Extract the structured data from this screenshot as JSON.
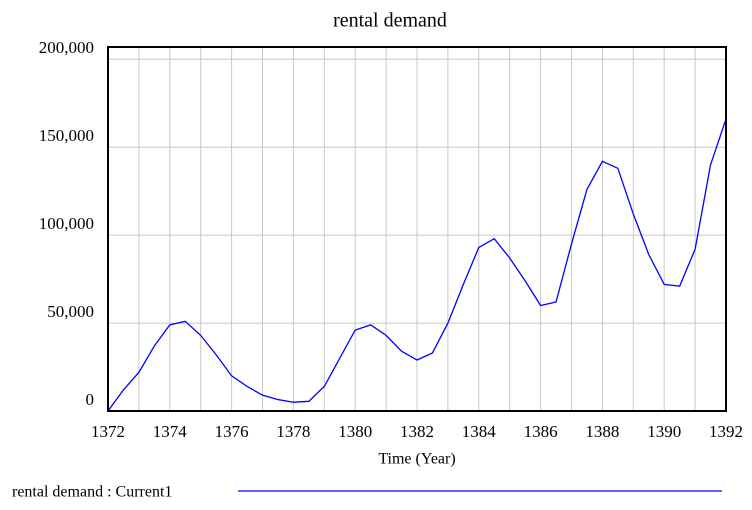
{
  "chart_data": {
    "type": "line",
    "title": "rental demand",
    "x_label": "Time (Year)",
    "x": [
      1372,
      1372.5,
      1373,
      1373.5,
      1374,
      1374.5,
      1375,
      1375.5,
      1376,
      1376.5,
      1377,
      1377.5,
      1378,
      1378.5,
      1379,
      1379.5,
      1380,
      1380.5,
      1381,
      1381.5,
      1382,
      1382.5,
      1383,
      1383.5,
      1384,
      1384.5,
      1385,
      1385.5,
      1386,
      1386.5,
      1387,
      1387.5,
      1388,
      1388.5,
      1389,
      1389.5,
      1390,
      1390.5,
      1391,
      1391.5,
      1392
    ],
    "series": [
      {
        "name": "rental demand : Current1",
        "color": "#0000ff",
        "values": [
          0,
          12000,
          22000,
          37000,
          49000,
          51000,
          43000,
          32000,
          20000,
          14000,
          9000,
          6500,
          5000,
          5500,
          14000,
          30000,
          46000,
          49000,
          43000,
          34000,
          29000,
          33000,
          50000,
          72000,
          93000,
          98000,
          87000,
          74000,
          60000,
          62000,
          95000,
          126000,
          142000,
          138000,
          112000,
          89000,
          72000,
          71000,
          92000,
          140000,
          166000
        ]
      }
    ],
    "xlim": [
      1372,
      1392
    ],
    "xticks": [
      1372,
      1374,
      1376,
      1378,
      1380,
      1382,
      1384,
      1386,
      1388,
      1390,
      1392
    ],
    "xgrid": [
      1372,
      1373,
      1374,
      1375,
      1376,
      1377,
      1378,
      1379,
      1380,
      1381,
      1382,
      1383,
      1384,
      1385,
      1386,
      1387,
      1388,
      1389,
      1390,
      1391,
      1392
    ],
    "ylim": [
      0,
      207000
    ],
    "yticks": [
      0,
      {
        "value": 50000,
        "label": "50,000"
      },
      {
        "value": 100000,
        "label": "100,000"
      },
      {
        "value": 150000,
        "label": "150,000"
      },
      {
        "value": 200000,
        "label": "200,000"
      }
    ],
    "grid": true
  }
}
